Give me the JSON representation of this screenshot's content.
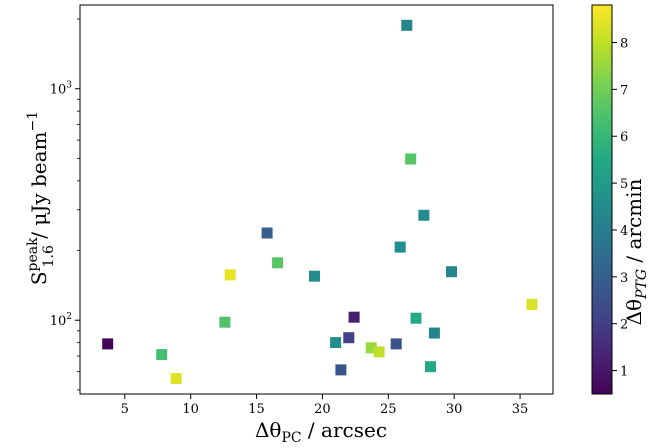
{
  "chart_data": {
    "type": "scatter",
    "title": "",
    "xlabel": "Δθ_PC / arcsec",
    "xlabel_parts": {
      "main": "Δθ",
      "sub": "PC",
      "unit": " / arcsec"
    },
    "ylabel": "S_1.6^peak / μJy beam^−1",
    "ylabel_parts": {
      "main": "S",
      "sup": "peak",
      "sub": "1.6",
      "unit": " / μJy beam",
      "unit_sup": "−1"
    },
    "colorbar_label": "Δθ_PTG / arcmin",
    "colorbar_label_parts": {
      "main": "Δθ",
      "sub": "PTG",
      "unit": " / arcmin"
    },
    "xlim": [
      1.6,
      37.5
    ],
    "ylim": [
      48,
      2300
    ],
    "yscale": "log",
    "clim": [
      0.5,
      8.8
    ],
    "colormap": "viridis",
    "marker": "square",
    "grid": false,
    "x_ticks": [
      5,
      10,
      15,
      20,
      25,
      30,
      35
    ],
    "x_tick_labels": [
      "5",
      "10",
      "15",
      "20",
      "25",
      "30",
      "35"
    ],
    "y_major_ticks": [
      100,
      1000
    ],
    "y_major_labels": [
      "10",
      "10"
    ],
    "y_major_label_exps": [
      "2",
      "3"
    ],
    "y_minor_ticks": [
      50,
      60,
      70,
      80,
      90,
      200,
      300,
      400,
      500,
      600,
      700,
      800,
      900,
      2000
    ],
    "colorbar_ticks": [
      1,
      2,
      3,
      4,
      5,
      6,
      7,
      8
    ],
    "colorbar_tick_labels": [
      "1",
      "2",
      "3",
      "4",
      "5",
      "6",
      "7",
      "8"
    ],
    "points": [
      {
        "x": 3.7,
        "y": 79,
        "c": 0.6
      },
      {
        "x": 7.8,
        "y": 71,
        "c": 6.3
      },
      {
        "x": 8.9,
        "y": 56,
        "c": 8.4
      },
      {
        "x": 12.6,
        "y": 98,
        "c": 6.5
      },
      {
        "x": 13.0,
        "y": 157,
        "c": 8.5
      },
      {
        "x": 15.8,
        "y": 238,
        "c": 3.0
      },
      {
        "x": 16.6,
        "y": 177,
        "c": 6.6
      },
      {
        "x": 19.4,
        "y": 155,
        "c": 4.5
      },
      {
        "x": 21.0,
        "y": 80,
        "c": 4.5
      },
      {
        "x": 21.4,
        "y": 61,
        "c": 2.6
      },
      {
        "x": 22.0,
        "y": 84,
        "c": 2.1
      },
      {
        "x": 22.4,
        "y": 103,
        "c": 1.2
      },
      {
        "x": 23.7,
        "y": 76,
        "c": 7.5
      },
      {
        "x": 24.3,
        "y": 73,
        "c": 8.0
      },
      {
        "x": 25.6,
        "y": 79,
        "c": 2.6
      },
      {
        "x": 25.9,
        "y": 207,
        "c": 4.5
      },
      {
        "x": 26.4,
        "y": 1880,
        "c": 4.3
      },
      {
        "x": 26.7,
        "y": 497,
        "c": 6.6
      },
      {
        "x": 27.1,
        "y": 102,
        "c": 5.5
      },
      {
        "x": 27.7,
        "y": 284,
        "c": 4.5
      },
      {
        "x": 28.2,
        "y": 63,
        "c": 5.5
      },
      {
        "x": 28.5,
        "y": 88,
        "c": 4.3
      },
      {
        "x": 29.8,
        "y": 162,
        "c": 4.3
      },
      {
        "x": 35.9,
        "y": 117,
        "c": 8.3
      }
    ]
  }
}
